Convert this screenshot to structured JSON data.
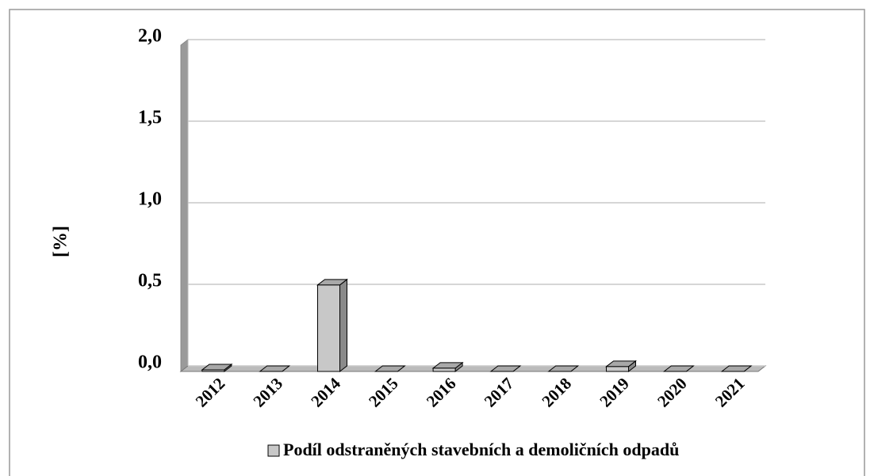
{
  "chart_data": {
    "type": "bar",
    "categories": [
      "2012",
      "2013",
      "2014",
      "2015",
      "2016",
      "2017",
      "2018",
      "2019",
      "2020",
      "2021"
    ],
    "series": [
      {
        "name": "Podíl odstraněných stavebních a demoličních odpadů",
        "color": "#c8c8c8",
        "values": [
          0.01,
          0,
          0.53,
          0,
          0.02,
          0,
          0,
          0.03,
          0,
          0
        ]
      }
    ],
    "y_label": "[%]",
    "ylim": [
      0,
      2
    ],
    "yticks": [
      {
        "value": 0,
        "label": "0,0"
      },
      {
        "value": 0.5,
        "label": "0,5"
      },
      {
        "value": 1,
        "label": "1,0"
      },
      {
        "value": 1.5,
        "label": "1,5"
      },
      {
        "value": 2,
        "label": "2,0"
      }
    ],
    "grid": true,
    "legend": "bottom"
  }
}
